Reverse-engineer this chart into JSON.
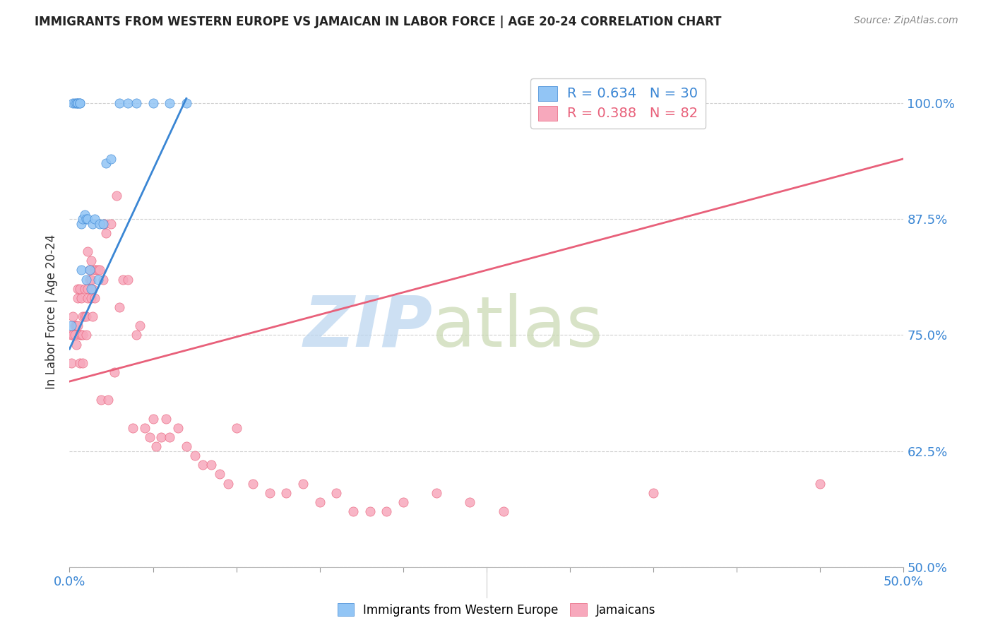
{
  "title": "IMMIGRANTS FROM WESTERN EUROPE VS JAMAICAN IN LABOR FORCE | AGE 20-24 CORRELATION CHART",
  "source": "Source: ZipAtlas.com",
  "ylabel": "In Labor Force | Age 20-24",
  "yticks_labels": [
    "100.0%",
    "87.5%",
    "75.0%",
    "62.5%",
    "50.0%"
  ],
  "ytick_vals": [
    1.0,
    0.875,
    0.75,
    0.625,
    0.5
  ],
  "blue_R": "R = 0.634",
  "blue_N": "N = 30",
  "pink_R": "R = 0.388",
  "pink_N": "N = 82",
  "blue_color": "#92c5f5",
  "pink_color": "#f7a8bc",
  "blue_line_color": "#3a86d4",
  "pink_line_color": "#e8607a",
  "legend_blue": "Immigrants from Western Europe",
  "legend_pink": "Jamaicans",
  "blue_scatter_x": [
    0.001,
    0.002,
    0.003,
    0.004,
    0.005,
    0.005,
    0.006,
    0.006,
    0.007,
    0.007,
    0.008,
    0.009,
    0.01,
    0.01,
    0.011,
    0.012,
    0.013,
    0.014,
    0.015,
    0.017,
    0.018,
    0.02,
    0.022,
    0.025,
    0.03,
    0.035,
    0.04,
    0.05,
    0.06,
    0.07
  ],
  "blue_scatter_y": [
    0.76,
    1.0,
    1.0,
    1.0,
    1.0,
    1.0,
    1.0,
    1.0,
    0.82,
    0.87,
    0.875,
    0.88,
    0.875,
    0.81,
    0.875,
    0.82,
    0.8,
    0.87,
    0.875,
    0.81,
    0.87,
    0.87,
    0.935,
    0.94,
    1.0,
    1.0,
    1.0,
    1.0,
    1.0,
    1.0
  ],
  "pink_scatter_x": [
    0.001,
    0.001,
    0.002,
    0.002,
    0.003,
    0.003,
    0.004,
    0.004,
    0.005,
    0.005,
    0.005,
    0.006,
    0.006,
    0.006,
    0.007,
    0.007,
    0.008,
    0.008,
    0.008,
    0.009,
    0.009,
    0.01,
    0.01,
    0.011,
    0.011,
    0.011,
    0.012,
    0.012,
    0.013,
    0.013,
    0.013,
    0.014,
    0.014,
    0.015,
    0.015,
    0.016,
    0.017,
    0.018,
    0.019,
    0.02,
    0.021,
    0.022,
    0.023,
    0.025,
    0.027,
    0.028,
    0.03,
    0.032,
    0.035,
    0.038,
    0.04,
    0.042,
    0.045,
    0.048,
    0.05,
    0.052,
    0.055,
    0.058,
    0.06,
    0.065,
    0.07,
    0.075,
    0.08,
    0.085,
    0.09,
    0.095,
    0.1,
    0.11,
    0.12,
    0.13,
    0.14,
    0.15,
    0.16,
    0.17,
    0.18,
    0.19,
    0.2,
    0.22,
    0.24,
    0.26,
    0.35,
    0.45
  ],
  "pink_scatter_y": [
    0.75,
    0.72,
    0.75,
    0.77,
    0.75,
    0.76,
    0.76,
    0.74,
    0.76,
    0.79,
    0.8,
    0.75,
    0.72,
    0.8,
    0.79,
    0.75,
    0.77,
    0.75,
    0.72,
    0.8,
    0.77,
    0.77,
    0.75,
    0.8,
    0.84,
    0.79,
    0.81,
    0.82,
    0.83,
    0.81,
    0.79,
    0.8,
    0.77,
    0.82,
    0.79,
    0.82,
    0.82,
    0.82,
    0.68,
    0.81,
    0.87,
    0.86,
    0.68,
    0.87,
    0.71,
    0.9,
    0.78,
    0.81,
    0.81,
    0.65,
    0.75,
    0.76,
    0.65,
    0.64,
    0.66,
    0.63,
    0.64,
    0.66,
    0.64,
    0.65,
    0.63,
    0.62,
    0.61,
    0.61,
    0.6,
    0.59,
    0.65,
    0.59,
    0.58,
    0.58,
    0.59,
    0.57,
    0.58,
    0.56,
    0.56,
    0.56,
    0.57,
    0.58,
    0.57,
    0.56,
    0.58,
    0.59
  ],
  "xlim": [
    0.0,
    0.5
  ],
  "ylim": [
    0.5,
    1.05
  ],
  "blue_trend_x": [
    0.0,
    0.07
  ],
  "blue_trend_y": [
    0.735,
    1.005
  ],
  "pink_trend_x": [
    0.0,
    0.5
  ],
  "pink_trend_y": [
    0.7,
    0.94
  ],
  "xtick_positions": [
    0.0,
    0.05,
    0.1,
    0.15,
    0.2,
    0.25,
    0.3,
    0.35,
    0.4,
    0.45,
    0.5
  ],
  "grid_color": "#d0d0d0",
  "watermark_zip_color": "#b8d4ef",
  "watermark_atlas_color": "#c8d8b0"
}
